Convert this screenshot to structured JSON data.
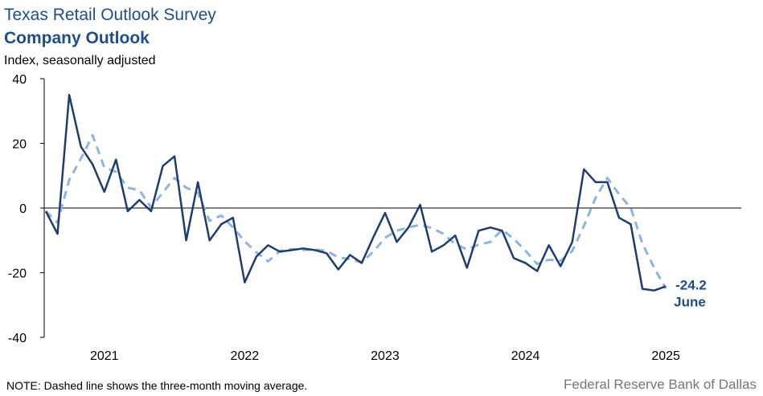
{
  "chart_data": {
    "type": "line",
    "title": "Texas Retail Outlook Survey",
    "subtitle": "Company Outlook",
    "y_axis_label": "Index, seasonally adjusted",
    "note": "NOTE: Dashed line shows the three-month  moving average.",
    "source": "Federal Reserve Bank of Dallas",
    "annotation": "June",
    "categories": [
      null,
      null,
      null,
      null,
      null,
      "2021",
      null,
      null,
      null,
      null,
      null,
      null,
      null,
      null,
      null,
      null,
      null,
      "2022",
      null,
      null,
      null,
      null,
      null,
      null,
      null,
      null,
      null,
      null,
      null,
      "2023",
      null,
      null,
      null,
      null,
      null,
      null,
      null,
      null,
      null,
      null,
      null,
      "2024",
      null,
      null,
      null,
      null,
      null,
      null,
      null,
      null,
      null,
      null,
      null,
      "2025"
    ],
    "series": [
      {
        "name": "Company Outlook",
        "color": "#1f3d6b",
        "dashed": false,
        "values": [
          -1,
          -8,
          35,
          19,
          13.5,
          5,
          15,
          -1,
          2.5,
          -1,
          13,
          16,
          -10,
          8,
          -10,
          -5,
          -3,
          -23,
          -15,
          -11.5,
          -13.5,
          -13,
          -12.5,
          -13,
          -14,
          -19,
          -14.5,
          -17,
          -9,
          -1.5,
          -10.5,
          -6,
          1,
          -13.5,
          -11.5,
          -8.5,
          -18.5,
          -7,
          -6,
          -7,
          -15.5,
          -17,
          -19.5,
          -11.5,
          -18,
          -10.5,
          12,
          8,
          8,
          -3,
          -5,
          -25,
          -25.5,
          -24.2
        ]
      },
      {
        "name": "Three-month moving average",
        "color": "#8fb4de",
        "dashed": true,
        "values": [
          -1,
          -4.5,
          8.7,
          15.3,
          22.5,
          12.5,
          11.2,
          6.3,
          5.5,
          0.2,
          4.8,
          9.3,
          6.3,
          4.7,
          -4,
          -2.3,
          -6,
          -10.3,
          -13.7,
          -16.5,
          -13.3,
          -12.7,
          -13,
          -12.8,
          -13.2,
          -15.3,
          -15.8,
          -16.8,
          -13.5,
          -9.2,
          -7,
          -6,
          -5.2,
          -6.2,
          -8,
          -11.2,
          -12.8,
          -11.3,
          -10.5,
          -6.7,
          -9.5,
          -13.2,
          -17.3,
          -16,
          -16.3,
          -13.3,
          -5.5,
          3.2,
          9.3,
          4.3,
          0,
          -11,
          -18.5,
          -24.9
        ]
      }
    ],
    "ylim": [
      -40,
      40
    ],
    "yticks": [
      -40,
      -20,
      0,
      20,
      40
    ]
  }
}
